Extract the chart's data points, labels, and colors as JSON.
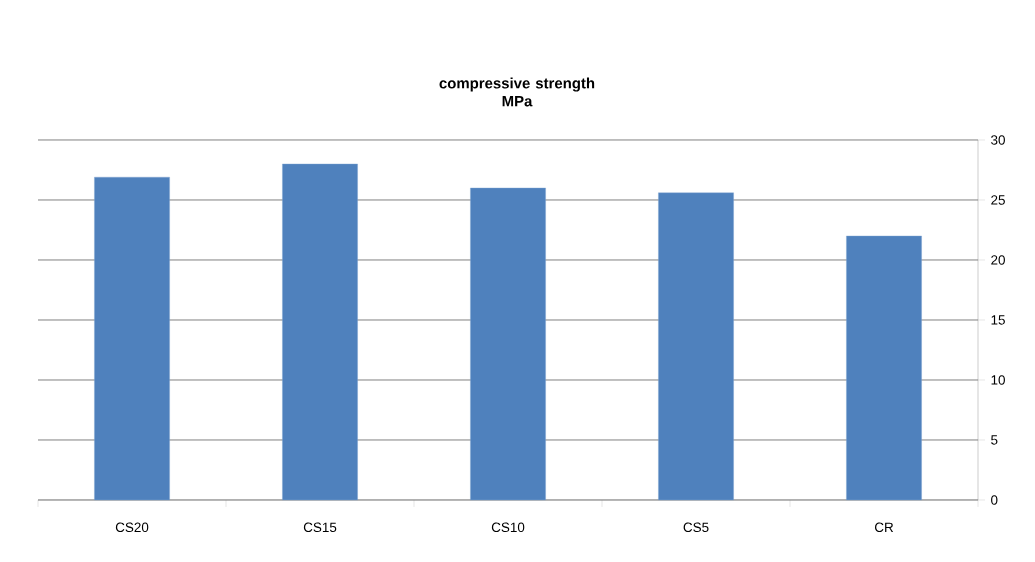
{
  "chart_data": {
    "type": "bar",
    "title": "compressive strength\nMPa",
    "categories": [
      "CS20",
      "CS15",
      "CS10",
      "CS5",
      "CR"
    ],
    "values": [
      26.9,
      28.0,
      26.0,
      25.6,
      22.0
    ],
    "color": "#4f81bd",
    "ylim": [
      0,
      30
    ],
    "yticks": [
      0,
      5,
      10,
      15,
      20,
      25,
      30
    ],
    "grid": "y"
  }
}
